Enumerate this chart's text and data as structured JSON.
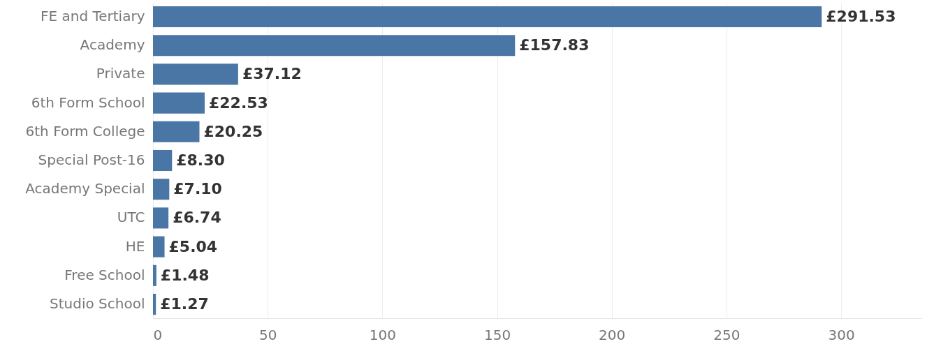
{
  "chart_data": {
    "type": "bar",
    "orientation": "horizontal",
    "categories": [
      "FE and Tertiary",
      "Academy",
      "Private",
      "6th Form School",
      "6th Form College",
      "Special Post-16",
      "Academy Special",
      "UTC",
      "HE",
      "Free School",
      "Studio School"
    ],
    "values": [
      291.53,
      157.83,
      37.12,
      22.53,
      20.25,
      8.3,
      7.1,
      6.74,
      5.04,
      1.48,
      1.27
    ],
    "value_labels": [
      "£291.53",
      "£157.83",
      "£37.12",
      "£22.53",
      "£20.25",
      "£8.30",
      "£7.10",
      "£6.74",
      "£5.04",
      "£1.48",
      "£1.27"
    ],
    "color": "#4a76a6",
    "xlim": [
      0,
      335
    ],
    "xticks": [
      0,
      50,
      100,
      150,
      200,
      250,
      300
    ],
    "grid": "x"
  }
}
